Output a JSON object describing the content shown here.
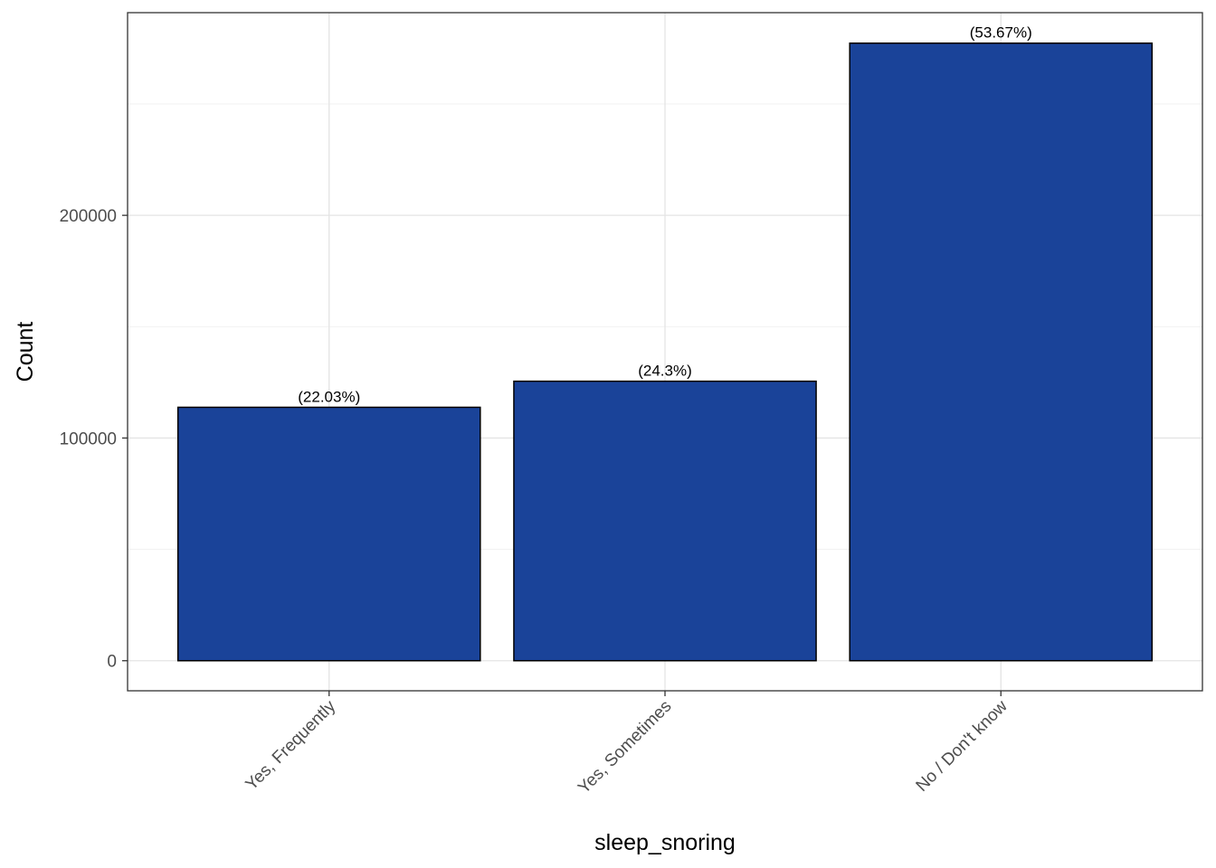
{
  "chart_data": {
    "type": "bar",
    "xlabel": "sleep_snoring",
    "ylabel": "Count",
    "categories": [
      "Yes, Frequently",
      "Yes, Sometimes",
      "No / Don't know"
    ],
    "values": [
      113800,
      125500,
      277300
    ],
    "labels": [
      "(22.03%)",
      "(24.3%)",
      "(53.67%)"
    ],
    "ylim": [
      -13500,
      291000
    ],
    "yticks": [
      0,
      100000,
      200000
    ],
    "yticks_minor": [
      50000,
      150000,
      250000
    ],
    "grid": true,
    "bar_color": "#1A4399",
    "bar_border": "#000000"
  }
}
